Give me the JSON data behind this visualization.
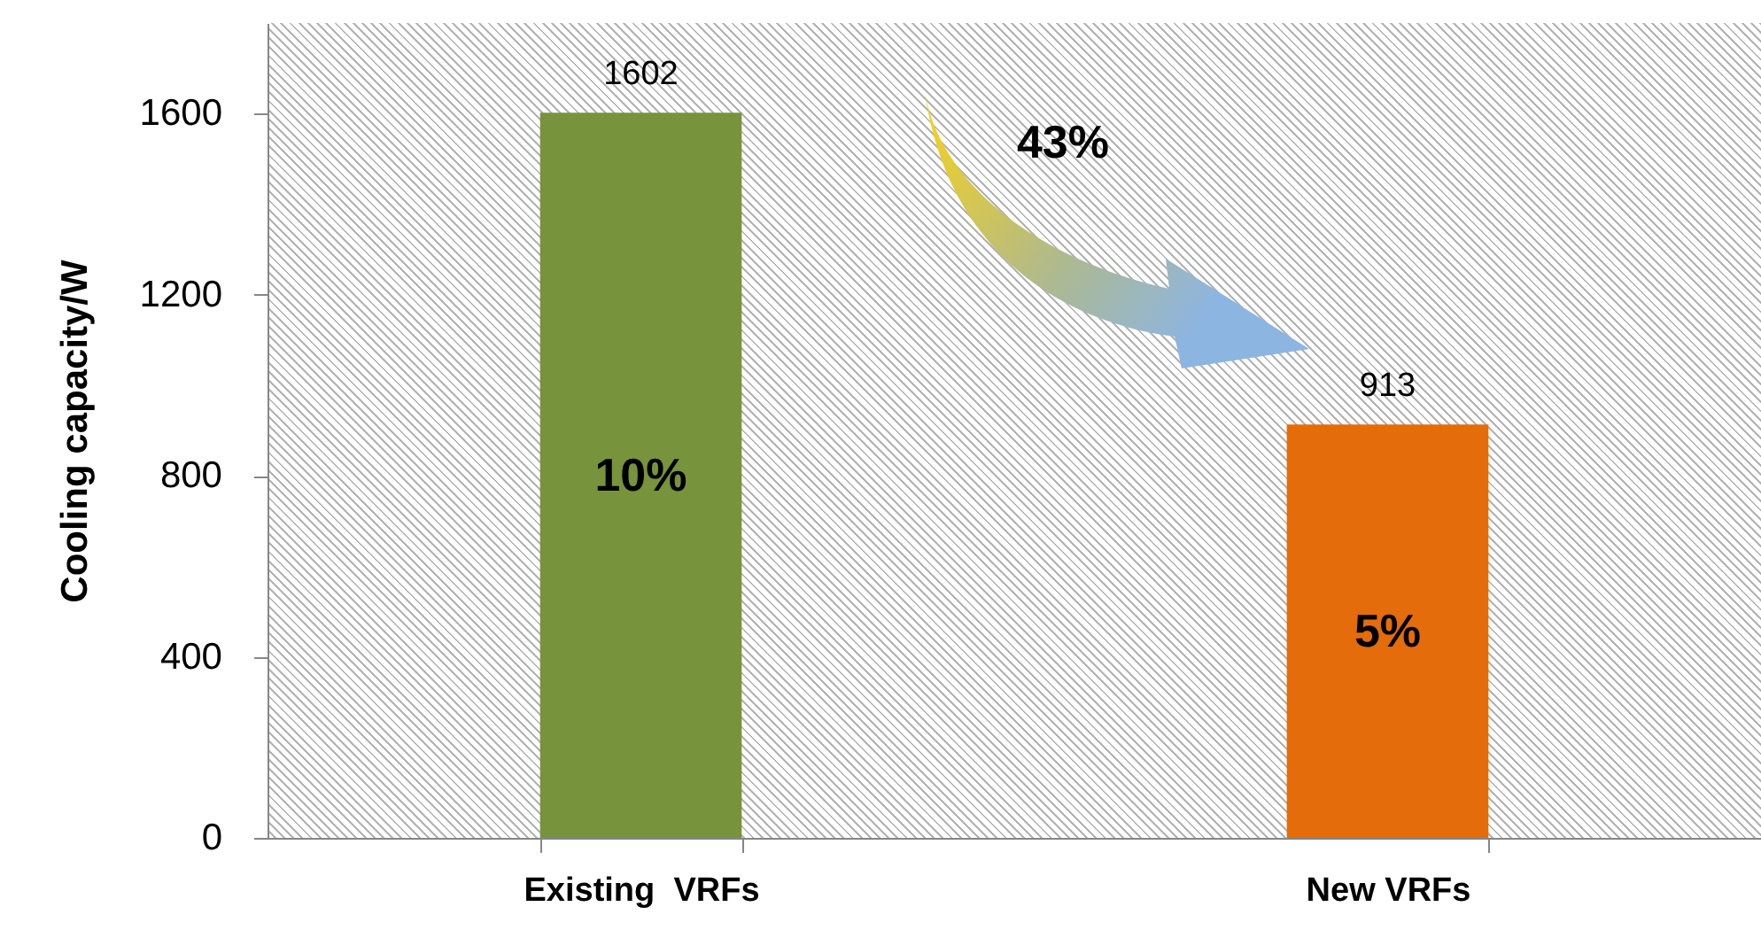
{
  "chart_data": {
    "type": "bar",
    "ylabel": "Cooling capacity/W",
    "categories": [
      "Existing  VRFs",
      "New VRFs"
    ],
    "values": [
      1602,
      913
    ],
    "colors": [
      "#77933c",
      "#e46c0a"
    ],
    "ylim": [
      0,
      1800
    ],
    "yticks": [
      0,
      400,
      800,
      1200,
      1600
    ],
    "data_labels": true,
    "annotations": [
      "10%",
      "43%",
      "5%"
    ]
  }
}
